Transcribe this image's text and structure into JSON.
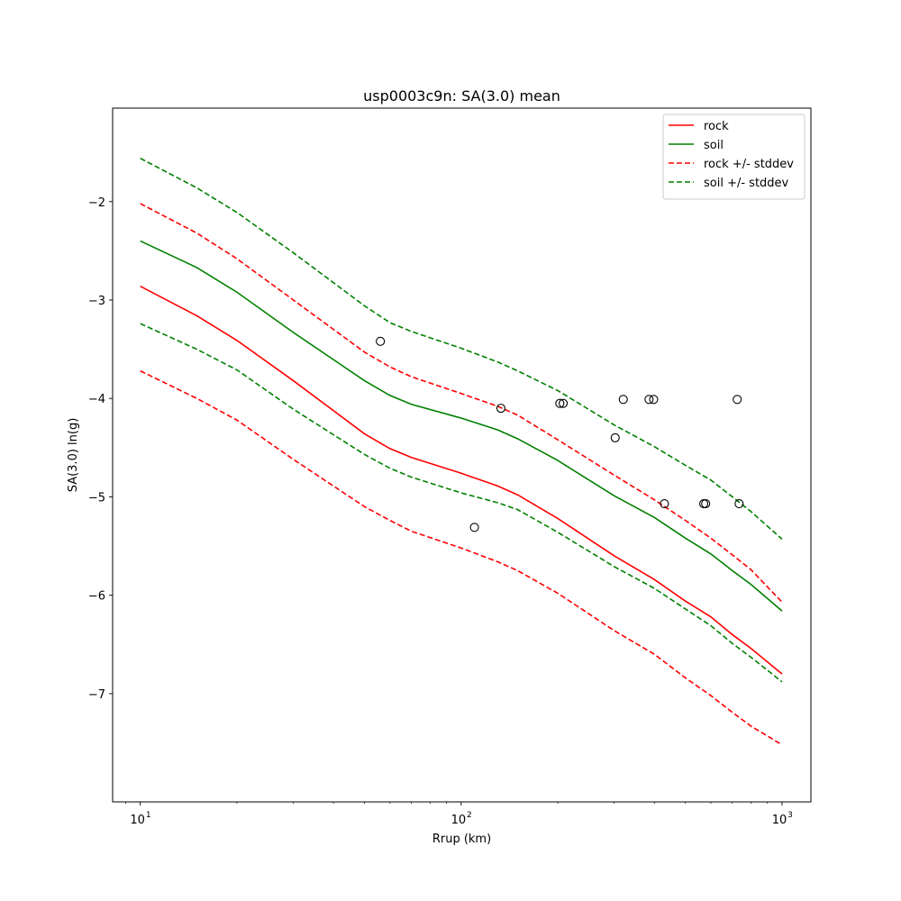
{
  "chart_data": {
    "type": "line",
    "title": "usp0003c9n: SA(3.0) mean",
    "xlabel": "Rrup (km)",
    "ylabel": "SA(3.0) ln(g)",
    "xscale": "log",
    "xlim": [
      8.2,
      1230
    ],
    "ylim": [
      -8.1,
      -1.05
    ],
    "x_ticks": [
      {
        "value": 10,
        "label": "10",
        "sup": "1"
      },
      {
        "value": 100,
        "label": "10",
        "sup": "2"
      },
      {
        "value": 1000,
        "label": "10",
        "sup": "3"
      }
    ],
    "y_ticks": [
      -2,
      -3,
      -4,
      -5,
      -6,
      -7
    ],
    "y_tick_labels": [
      "−2",
      "−3",
      "−4",
      "−5",
      "−6",
      "−7"
    ],
    "grid": false,
    "legend_position": "top-right",
    "x": [
      10,
      15,
      20,
      30,
      50,
      60,
      70,
      100,
      130,
      150,
      200,
      300,
      400,
      500,
      600,
      700,
      800,
      1000
    ],
    "series": [
      {
        "name": "rock",
        "color": "#ff0000",
        "style": "solid",
        "values": [
          -2.86,
          -3.16,
          -3.41,
          -3.82,
          -4.36,
          -4.51,
          -4.6,
          -4.76,
          -4.89,
          -4.98,
          -5.22,
          -5.6,
          -5.84,
          -6.06,
          -6.22,
          -6.4,
          -6.54,
          -6.8
        ]
      },
      {
        "name": "soil",
        "color": "#008000",
        "style": "solid",
        "values": [
          -2.4,
          -2.67,
          -2.92,
          -3.33,
          -3.82,
          -3.97,
          -4.06,
          -4.2,
          -4.32,
          -4.41,
          -4.63,
          -4.99,
          -5.21,
          -5.42,
          -5.58,
          -5.75,
          -5.89,
          -6.16
        ]
      },
      {
        "name": "rock +/- stddev",
        "color": "#ff0000",
        "style": "dashed",
        "values": [
          -2.02,
          -2.32,
          -2.58,
          -3.0,
          -3.53,
          -3.68,
          -3.78,
          -3.95,
          -4.08,
          -4.17,
          -4.42,
          -4.78,
          -5.03,
          -5.24,
          -5.42,
          -5.59,
          -5.74,
          -6.07
        ]
      },
      {
        "name": "rock +/- stddev lower",
        "legend": false,
        "color": "#ff0000",
        "style": "dashed",
        "values": [
          -3.72,
          -4.0,
          -4.22,
          -4.62,
          -5.1,
          -5.24,
          -5.35,
          -5.52,
          -5.66,
          -5.75,
          -5.98,
          -6.36,
          -6.6,
          -6.84,
          -7.02,
          -7.19,
          -7.33,
          -7.52
        ]
      },
      {
        "name": "soil +/- stddev",
        "color": "#008000",
        "style": "dashed",
        "values": [
          -1.56,
          -1.86,
          -2.11,
          -2.52,
          -3.06,
          -3.23,
          -3.32,
          -3.49,
          -3.63,
          -3.72,
          -3.92,
          -4.27,
          -4.49,
          -4.68,
          -4.83,
          -5.0,
          -5.15,
          -5.43
        ]
      },
      {
        "name": "soil +/- stddev lower",
        "legend": false,
        "color": "#008000",
        "style": "dashed",
        "values": [
          -3.24,
          -3.5,
          -3.71,
          -4.11,
          -4.57,
          -4.71,
          -4.8,
          -4.96,
          -5.06,
          -5.13,
          -5.36,
          -5.71,
          -5.93,
          -6.14,
          -6.31,
          -6.49,
          -6.63,
          -6.88
        ]
      }
    ],
    "scatter": {
      "marker": "open-circle",
      "color": "#000000",
      "points": [
        {
          "x": 56,
          "y": -3.42
        },
        {
          "x": 110,
          "y": -5.31
        },
        {
          "x": 133,
          "y": -4.1
        },
        {
          "x": 203,
          "y": -4.05
        },
        {
          "x": 208,
          "y": -4.05
        },
        {
          "x": 302,
          "y": -4.4
        },
        {
          "x": 320,
          "y": -4.01
        },
        {
          "x": 385,
          "y": -4.01
        },
        {
          "x": 398,
          "y": -4.01
        },
        {
          "x": 430,
          "y": -5.07
        },
        {
          "x": 570,
          "y": -5.07
        },
        {
          "x": 578,
          "y": -5.07
        },
        {
          "x": 725,
          "y": -4.01
        },
        {
          "x": 735,
          "y": -5.07
        }
      ]
    }
  }
}
